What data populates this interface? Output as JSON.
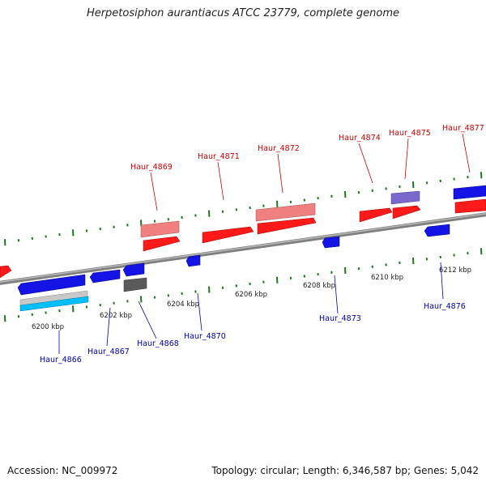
{
  "header": {
    "title": "Herpetosiphon aurantiacus ATCC 23779, complete genome"
  },
  "footer": {
    "accession": "Accession: NC_009972",
    "summary": "Topology: circular; Length: 6,346,587 bp; Genes: 5,042"
  },
  "colors": {
    "forward_gene": "#ff0000",
    "reverse_gene": "#0000ff",
    "forward_label": "#cc0000",
    "reverse_label": "#0000aa",
    "tick": "#1a7a1a",
    "backbone": "#7f7f7f"
  },
  "scale_labels": [
    "6200 kbp",
    "6202 kbp",
    "6204 kbp",
    "6206 kbp",
    "6208 kbp",
    "6210 kbp",
    "6212 kbp"
  ],
  "gene_labels": {
    "forward": [
      "Haur_4869",
      "Haur_4871",
      "Haur_4872",
      "Haur_4874",
      "Haur_4875",
      "Haur_4877"
    ],
    "reverse": [
      "Haur_4866",
      "Haur_4867",
      "Haur_4868",
      "Haur_4870",
      "Haur_4873",
      "Haur_4876"
    ]
  }
}
